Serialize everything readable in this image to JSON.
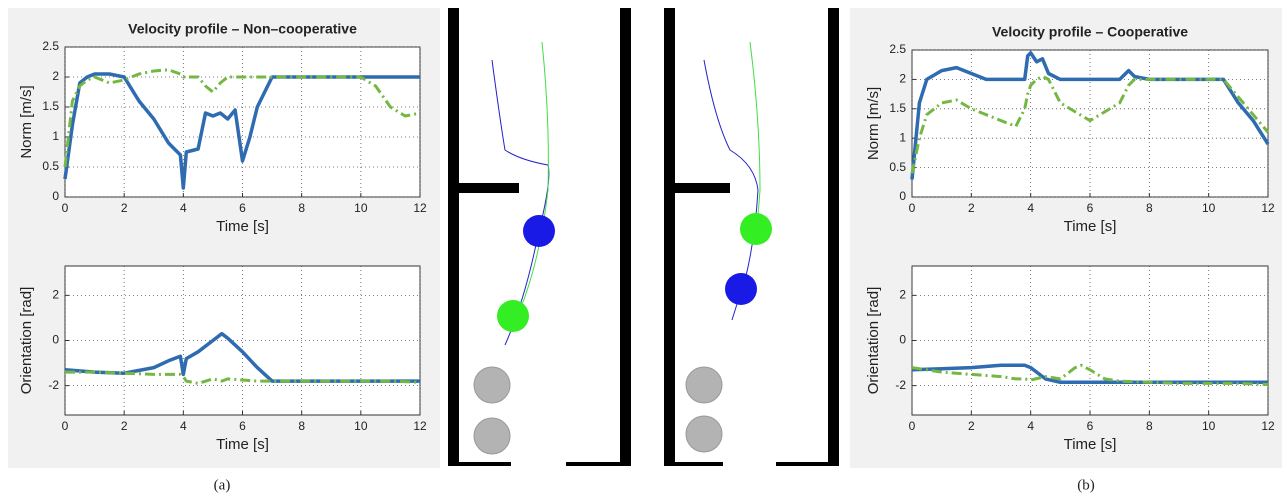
{
  "captions": [
    "(a)",
    "(b)"
  ],
  "chart_data": [
    {
      "type": "line",
      "title": "Velocity profile – Non–cooperative",
      "xlabel": "Time [s]",
      "ylabel": "Norm [m/s]",
      "xlim": [
        0,
        12
      ],
      "ylim": [
        0,
        2.5
      ],
      "xticks": [
        0,
        2,
        4,
        6,
        8,
        10,
        12
      ],
      "yticks": [
        0,
        0.5,
        1,
        1.5,
        2,
        2.5
      ],
      "grid": true,
      "x": [
        0,
        0.25,
        0.5,
        0.75,
        1,
        1.5,
        2,
        2.5,
        3,
        3.5,
        3.9,
        4,
        4.1,
        4.5,
        4.75,
        5,
        5.25,
        5.5,
        5.75,
        6,
        6.25,
        6.5,
        7,
        7.5,
        8,
        9,
        10,
        10.5,
        11,
        11.5,
        12
      ],
      "series": [
        {
          "color": "#2e6bb0",
          "dashed": false,
          "values": [
            0.3,
            1.2,
            1.9,
            2.0,
            2.05,
            2.05,
            2.0,
            1.6,
            1.3,
            0.9,
            0.7,
            0.15,
            0.75,
            0.8,
            1.4,
            1.35,
            1.4,
            1.3,
            1.45,
            0.6,
            1.0,
            1.5,
            2.0,
            2.0,
            2.0,
            2.0,
            2.0,
            2.0,
            2.0,
            2.0,
            2.0
          ]
        },
        {
          "color": "#74b843",
          "dashed": true,
          "values": [
            0.5,
            1.6,
            1.85,
            1.95,
            2.0,
            1.9,
            1.95,
            2.05,
            2.1,
            2.12,
            2.05,
            2.0,
            2.0,
            2.0,
            1.85,
            1.75,
            1.9,
            2.0,
            2.0,
            2.0,
            2.0,
            2.0,
            2.0,
            2.0,
            2.0,
            2.0,
            2.0,
            1.85,
            1.5,
            1.35,
            1.4
          ]
        }
      ]
    },
    {
      "type": "line",
      "xlabel": "Time [s]",
      "ylabel": "Orientation [rad]",
      "xlim": [
        0,
        12
      ],
      "ylim": [
        -3.3,
        3.3
      ],
      "xticks": [
        0,
        2,
        4,
        6,
        8,
        10,
        12
      ],
      "yticks": [
        -2,
        0,
        2
      ],
      "grid": true,
      "x": [
        0,
        1,
        2,
        3,
        3.5,
        3.9,
        4,
        4.1,
        4.5,
        5,
        5.3,
        5.5,
        6,
        6.5,
        7,
        8,
        9,
        10,
        11,
        12
      ],
      "series": [
        {
          "color": "#2e6bb0",
          "dashed": false,
          "values": [
            -1.3,
            -1.4,
            -1.45,
            -1.2,
            -0.9,
            -0.7,
            -1.5,
            -0.8,
            -0.5,
            0,
            0.3,
            0.1,
            -0.5,
            -1.2,
            -1.8,
            -1.8,
            -1.8,
            -1.8,
            -1.8,
            -1.8
          ]
        },
        {
          "color": "#74b843",
          "dashed": true,
          "values": [
            -1.4,
            -1.4,
            -1.45,
            -1.5,
            -1.5,
            -1.5,
            -1.6,
            -1.8,
            -1.9,
            -1.7,
            -1.8,
            -1.7,
            -1.75,
            -1.8,
            -1.8,
            -1.8,
            -1.8,
            -1.8,
            -1.8,
            -1.85
          ]
        }
      ]
    },
    {
      "type": "line",
      "title": "Velocity profile – Cooperative",
      "xlabel": "Time [s]",
      "ylabel": "Norm [m/s]",
      "xlim": [
        0,
        12
      ],
      "ylim": [
        0,
        2.5
      ],
      "xticks": [
        0,
        2,
        4,
        6,
        8,
        10,
        12
      ],
      "yticks": [
        0,
        0.5,
        1,
        1.5,
        2,
        2.5
      ],
      "grid": true,
      "x": [
        0,
        0.25,
        0.5,
        1,
        1.5,
        2,
        2.5,
        3,
        3.5,
        3.8,
        3.9,
        4,
        4.2,
        4.4,
        4.6,
        5,
        6,
        7,
        7.3,
        7.5,
        8,
        9,
        10,
        10.5,
        11,
        11.5,
        12
      ],
      "series": [
        {
          "color": "#2e6bb0",
          "dashed": false,
          "values": [
            0.3,
            1.6,
            2.0,
            2.15,
            2.2,
            2.1,
            2.0,
            2.0,
            2.0,
            2.0,
            2.4,
            2.45,
            2.3,
            2.35,
            2.1,
            2.0,
            2.0,
            2.0,
            2.15,
            2.05,
            2.0,
            2.0,
            2.0,
            2.0,
            1.6,
            1.3,
            0.9
          ]
        },
        {
          "color": "#74b843",
          "dashed": true,
          "values": [
            0.4,
            1.0,
            1.4,
            1.6,
            1.65,
            1.5,
            1.4,
            1.3,
            1.2,
            1.5,
            1.75,
            1.9,
            2.0,
            2.05,
            2.0,
            1.6,
            1.3,
            1.6,
            1.9,
            2.0,
            2.0,
            2.0,
            2.0,
            2.0,
            1.7,
            1.4,
            1.1
          ]
        }
      ]
    },
    {
      "type": "line",
      "xlabel": "Time [s]",
      "ylabel": "Orientation [rad]",
      "xlim": [
        0,
        12
      ],
      "ylim": [
        -3.3,
        3.3
      ],
      "xticks": [
        0,
        2,
        4,
        6,
        8,
        10,
        12
      ],
      "yticks": [
        -2,
        0,
        2
      ],
      "grid": true,
      "x": [
        0,
        1,
        2,
        3,
        3.5,
        3.8,
        4,
        4.5,
        5,
        5.5,
        5.7,
        6,
        6.5,
        7,
        8,
        9,
        10,
        11,
        12
      ],
      "series": [
        {
          "color": "#2e6bb0",
          "dashed": false,
          "values": [
            -1.3,
            -1.25,
            -1.2,
            -1.1,
            -1.1,
            -1.1,
            -1.2,
            -1.7,
            -1.85,
            -1.85,
            -1.85,
            -1.85,
            -1.85,
            -1.85,
            -1.85,
            -1.85,
            -1.85,
            -1.85,
            -1.85
          ]
        },
        {
          "color": "#74b843",
          "dashed": true,
          "values": [
            -1.2,
            -1.4,
            -1.5,
            -1.6,
            -1.7,
            -1.7,
            -1.75,
            -1.6,
            -1.7,
            -1.2,
            -1.1,
            -1.3,
            -1.7,
            -1.8,
            -1.85,
            -1.9,
            -1.9,
            -1.9,
            -1.95
          ]
        }
      ]
    }
  ]
}
